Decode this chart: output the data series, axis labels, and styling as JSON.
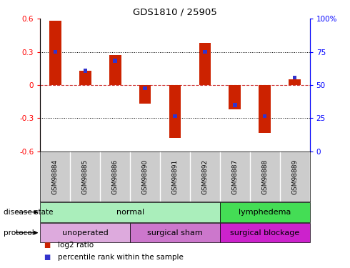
{
  "title": "GDS1810 / 25905",
  "samples": [
    "GSM98884",
    "GSM98885",
    "GSM98886",
    "GSM98890",
    "GSM98891",
    "GSM98892",
    "GSM98887",
    "GSM98888",
    "GSM98889"
  ],
  "log2_ratio": [
    0.58,
    0.13,
    0.27,
    -0.17,
    -0.48,
    0.38,
    -0.22,
    -0.43,
    0.05
  ],
  "percentile_rank": [
    0.3,
    0.13,
    0.22,
    -0.03,
    -0.28,
    0.3,
    -0.18,
    -0.28,
    0.07
  ],
  "ylim": [
    -0.6,
    0.6
  ],
  "yticks_left": [
    -0.6,
    -0.3,
    0.0,
    0.3,
    0.6
  ],
  "yticklabels_left": [
    "-0.6",
    "-0.3",
    "0",
    "0.3",
    "0.6"
  ],
  "yticks_right_labels": [
    "0",
    "25",
    "50",
    "75",
    "100%"
  ],
  "bar_color": "#cc2200",
  "blue_color": "#3333cc",
  "hline_color": "#cc3333",
  "dot_hline_color": "#000000",
  "bg_color": "#ffffff",
  "disease_state_normal_color": "#aaeebb",
  "disease_state_lymphedema_color": "#44dd55",
  "protocol_unoperated_color": "#ddaadd",
  "protocol_surgical_sham_color": "#cc77cc",
  "protocol_surgical_blockage_color": "#cc22cc",
  "gray_band_color": "#cccccc",
  "disease_states": [
    {
      "label": "normal",
      "start": 0,
      "end": 6
    },
    {
      "label": "lymphedema",
      "start": 6,
      "end": 9
    }
  ],
  "protocols": [
    {
      "label": "unoperated",
      "start": 0,
      "end": 3
    },
    {
      "label": "surgical sham",
      "start": 3,
      "end": 6
    },
    {
      "label": "surgical blockage",
      "start": 6,
      "end": 9
    }
  ],
  "legend_items": [
    {
      "label": "log2 ratio",
      "color": "#cc2200"
    },
    {
      "label": "percentile rank within the sample",
      "color": "#3333cc"
    }
  ]
}
